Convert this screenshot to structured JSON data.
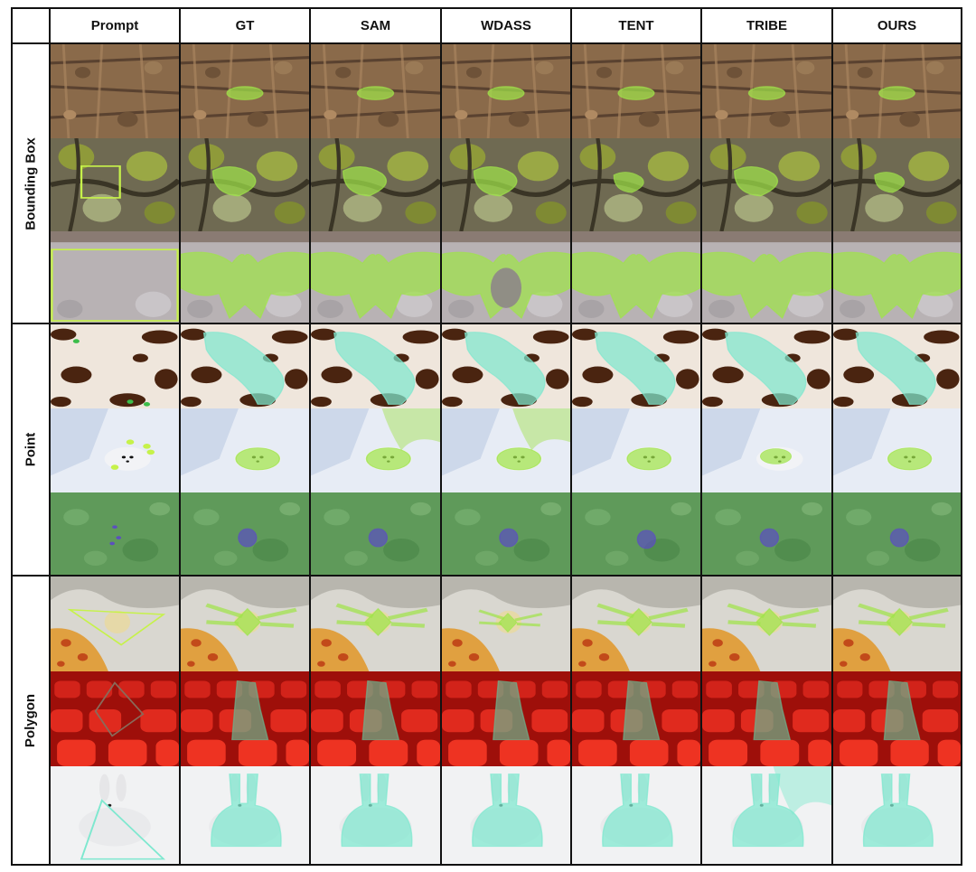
{
  "columns": [
    "Prompt",
    "GT",
    "SAM",
    "WDASS",
    "TENT",
    "TRIBE",
    "OURS"
  ],
  "groups": [
    {
      "label": "Bounding Box",
      "scenes": [
        "leaf-litter-camouflage",
        "lichen-bark-camouflage",
        "moth-on-rock"
      ]
    },
    {
      "label": "Point",
      "scenes": [
        "cow-print-animal",
        "snow-seal-pup",
        "underwater-turtle"
      ]
    },
    {
      "label": "Polygon",
      "scenes": [
        "crab-spider-on-flower",
        "person-in-red-seats",
        "white-hare-in-snow"
      ]
    }
  ],
  "colors": {
    "border": "#111111",
    "mask_green": "#9fe34a",
    "mask_cyan": "#7ee8cf",
    "mask_purple": "#5c4fbf",
    "prompt_box": "#c6f24a"
  }
}
